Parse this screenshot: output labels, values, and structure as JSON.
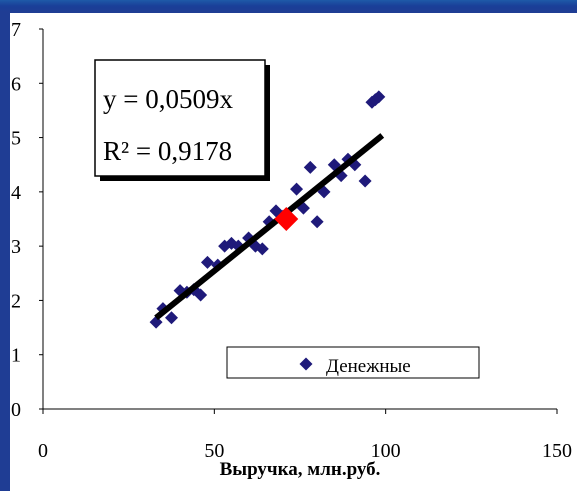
{
  "chart_data": {
    "type": "scatter",
    "title": "",
    "xlabel": "Выручка, млн.руб.",
    "ylabel": "",
    "xlim": [
      0,
      150
    ],
    "ylim": [
      0,
      7
    ],
    "x_ticks": [
      "0",
      "50",
      "100",
      "150"
    ],
    "y_ticks": [
      "0",
      "1",
      "2",
      "3",
      "4",
      "5",
      "6",
      "7"
    ],
    "grid": false,
    "legend": {
      "position": "bottom-right",
      "entries": [
        "Денежные"
      ]
    },
    "series": [
      {
        "name": "Денежные",
        "color": "#1f1a7a",
        "marker": "diamond",
        "points": [
          [
            33,
            1.6
          ],
          [
            35,
            1.85
          ],
          [
            37.5,
            1.68
          ],
          [
            40,
            2.18
          ],
          [
            42,
            2.15
          ],
          [
            44,
            2.2
          ],
          [
            46,
            2.1
          ],
          [
            48,
            2.7
          ],
          [
            51,
            2.65
          ],
          [
            53,
            3.0
          ],
          [
            55,
            3.05
          ],
          [
            57,
            3.0
          ],
          [
            60,
            3.15
          ],
          [
            62,
            3.0
          ],
          [
            64,
            2.95
          ],
          [
            66,
            3.45
          ],
          [
            68,
            3.65
          ],
          [
            70,
            3.55
          ],
          [
            74,
            4.05
          ],
          [
            76,
            3.7
          ],
          [
            78,
            4.45
          ],
          [
            80,
            3.45
          ],
          [
            82,
            4.0
          ],
          [
            85,
            4.5
          ],
          [
            87,
            4.3
          ],
          [
            89,
            4.6
          ],
          [
            91,
            4.5
          ],
          [
            94,
            4.2
          ],
          [
            96,
            5.65
          ],
          [
            97,
            5.7
          ],
          [
            98,
            5.75
          ]
        ]
      }
    ],
    "highlight_point": {
      "x": 71,
      "y": 3.5,
      "color": "#ff0000"
    },
    "trendline": {
      "equation": "y = 0,0509x",
      "r2": "R² = 0,9178",
      "slope": 0.0509,
      "x_range": [
        33,
        99
      ],
      "color": "#000000"
    }
  }
}
